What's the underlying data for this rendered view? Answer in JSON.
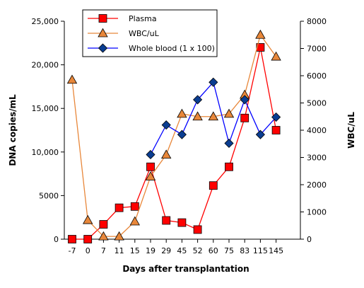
{
  "chart_data": {
    "type": "line",
    "title": "",
    "xlabel": "Days after transplantation",
    "ylabel": "DNA copies/mL",
    "y2label": "WBC/uL",
    "categories": [
      "-7",
      "0",
      "7",
      "11",
      "15",
      "19",
      "29",
      "45",
      "52",
      "60",
      "75",
      "83",
      "115",
      "145"
    ],
    "ylim": [
      0,
      25000
    ],
    "y2lim": [
      0,
      8000
    ],
    "yticks": [
      {
        "value": 0,
        "label": "0"
      },
      {
        "value": 5000,
        "label": "5000"
      },
      {
        "value": 10000,
        "label": "10,000"
      },
      {
        "value": 15000,
        "label": "15,000"
      },
      {
        "value": 20000,
        "label": "20,000"
      },
      {
        "value": 25000,
        "label": "25,000"
      }
    ],
    "y2ticks": [
      {
        "value": 0,
        "label": "0"
      },
      {
        "value": 1000,
        "label": "1000"
      },
      {
        "value": 2000,
        "label": "2000"
      },
      {
        "value": 3000,
        "label": "3000"
      },
      {
        "value": 4000,
        "label": "4000"
      },
      {
        "value": 5000,
        "label": "5000"
      },
      {
        "value": 6000,
        "label": "6000"
      },
      {
        "value": 7000,
        "label": "7000"
      },
      {
        "value": 8000,
        "label": "8000"
      }
    ],
    "grid": false,
    "legend_position": "top-left",
    "series": [
      {
        "name": "Plasma",
        "axis": "left",
        "marker": "square",
        "line_color": "#ff0000",
        "marker_fill": "#ff0000",
        "marker_stroke": "#000000",
        "values": [
          0,
          0,
          1700,
          3600,
          3750,
          8300,
          2150,
          1900,
          1100,
          6150,
          8300,
          13900,
          22000,
          12500
        ]
      },
      {
        "name": "WBC/uL",
        "axis": "right",
        "marker": "triangle",
        "line_color": "#e8873a",
        "marker_fill": "#e8873a",
        "marker_stroke": "#000000",
        "values": [
          5850,
          700,
          100,
          100,
          650,
          2300,
          3100,
          4600,
          4500,
          4500,
          4600,
          5300,
          7500,
          6700
        ]
      },
      {
        "name": "Whole blood (1 x 100)",
        "axis": "left",
        "marker": "diamond",
        "line_color": "#0000ff",
        "marker_fill": "#0a3d91",
        "marker_stroke": "#000000",
        "values": [
          null,
          null,
          null,
          null,
          null,
          9700,
          13100,
          12000,
          16000,
          18000,
          11000,
          16000,
          12000,
          14000
        ]
      }
    ]
  }
}
